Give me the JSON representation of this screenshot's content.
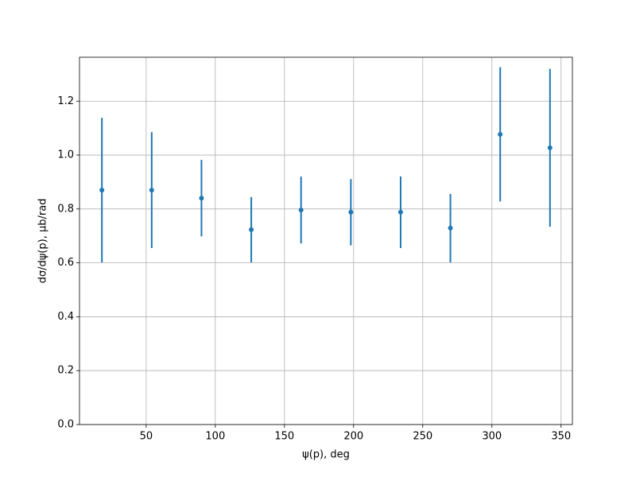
{
  "chart_data": {
    "type": "errorbar",
    "xlabel": "ψ(p), deg",
    "ylabel": "dσ/dψ(p), μb/rad",
    "x": [
      18,
      54,
      90,
      126,
      162,
      198,
      234,
      270,
      306,
      342
    ],
    "values": [
      0.87,
      0.87,
      0.84,
      0.723,
      0.796,
      0.788,
      0.788,
      0.729,
      1.077,
      1.027
    ],
    "errors": [
      0.268,
      0.215,
      0.142,
      0.121,
      0.124,
      0.123,
      0.133,
      0.127,
      0.249,
      0.293
    ],
    "color": "#1f77b4",
    "xlim": [
      1.8,
      358.2
    ],
    "ylim": [
      0,
      1.363
    ],
    "xticks": [
      50,
      100,
      150,
      200,
      250,
      300,
      350
    ],
    "yticks": [
      {
        "value": 0,
        "label": "0.0"
      },
      {
        "value": 0.2,
        "label": "0.2"
      },
      {
        "value": 0.4,
        "label": "0.4"
      },
      {
        "value": 0.6,
        "label": "0.6"
      },
      {
        "value": 0.8,
        "label": "0.8"
      },
      {
        "value": 1.0,
        "label": "1.0"
      },
      {
        "value": 1.2,
        "label": "1.2"
      }
    ],
    "grid": true
  }
}
